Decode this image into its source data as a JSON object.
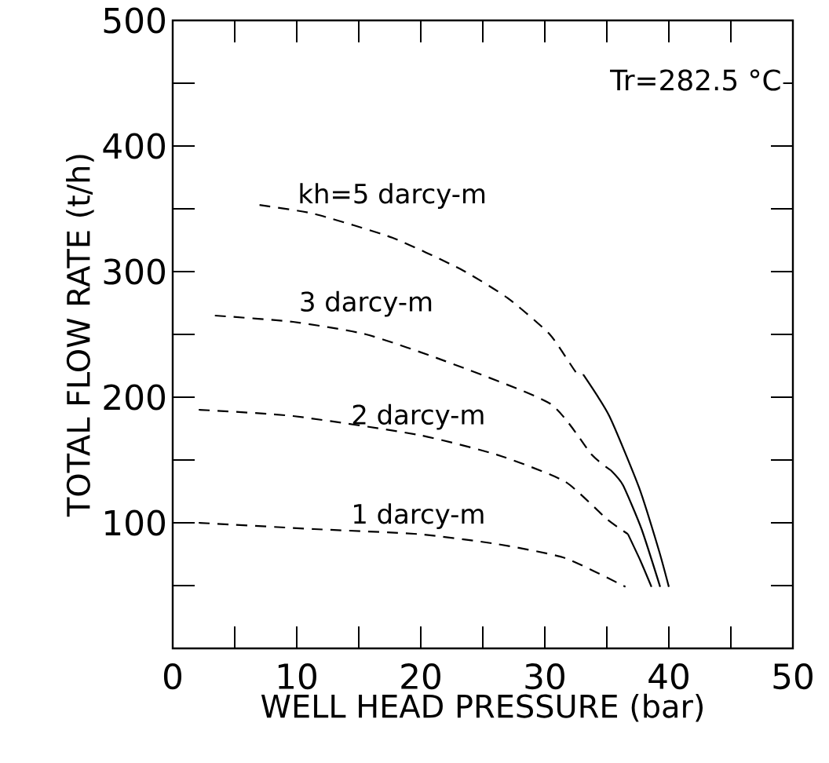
{
  "chart_data": {
    "type": "line",
    "xlabel": "WELL HEAD PRESSURE (bar)",
    "ylabel": "TOTAL FLOW RATE (t/h)",
    "annotations": [
      "Tr=282.5 °C"
    ],
    "xlim": [
      0,
      50
    ],
    "ylim": [
      0,
      500
    ],
    "xticks": [
      0,
      {
        "value": 5,
        "label": null
      },
      10,
      {
        "value": 15,
        "label": null
      },
      20,
      {
        "value": 25,
        "label": null
      },
      30,
      {
        "value": 35,
        "label": null
      },
      40,
      {
        "value": 45,
        "label": null
      },
      50
    ],
    "yticks": [
      {
        "value": 0,
        "label": null
      },
      {
        "value": 50,
        "label": null
      },
      100,
      {
        "value": 150,
        "label": null
      },
      200,
      {
        "value": 250,
        "label": null
      },
      300,
      {
        "value": 350,
        "label": null
      },
      400,
      {
        "value": 450,
        "label": null
      },
      500
    ],
    "grid": false,
    "legend": false,
    "marker": "none",
    "series": [
      {
        "name": "kh=5 darcy-m",
        "color": "#000000",
        "line_style": "dashed",
        "x": [
          7.0,
          11.4,
          17.7,
          23.2,
          27.0,
          30.4,
          32.5,
          33.1
        ],
        "values": [
          353,
          346,
          327,
          302,
          279,
          250,
          220,
          218
        ]
      },
      {
        "color": "#000000",
        "line_style": "solid",
        "x": [
          33.1,
          35.2,
          37.6,
          39.2,
          40.0
        ],
        "values": [
          218,
          185,
          128,
          78,
          49
        ]
      },
      {
        "name": "3 darcy-m",
        "color": "#000000",
        "line_style": "dashed",
        "x": [
          3.4,
          9.7,
          15.6,
          21.9,
          30.4,
          33.8,
          35.3
        ],
        "values": [
          265,
          260,
          250,
          229,
          195,
          154,
          142
        ]
      },
      {
        "color": "#000000",
        "line_style": "solid",
        "x": [
          35.3,
          36.3,
          37.8,
          39.3
        ],
        "values": [
          142,
          130,
          95,
          49
        ]
      },
      {
        "name": "2 darcy-m",
        "color": "#000000",
        "line_style": "dashed",
        "x": [
          2.1,
          9.7,
          19.8,
          26.2,
          31.6,
          35.0,
          36.7
        ],
        "values": [
          190,
          185,
          170,
          154,
          133,
          103,
          91
        ]
      },
      {
        "color": "#000000",
        "line_style": "solid",
        "x": [
          36.7,
          37.7,
          38.6
        ],
        "values": [
          91,
          70,
          49
        ]
      },
      {
        "name": "1 darcy-m",
        "color": "#000000",
        "line_style": "dashed",
        "x": [
          2.1,
          11.4,
          19.8,
          26.2,
          31.6,
          36.5
        ],
        "values": [
          100,
          95,
          91,
          83,
          72,
          49
        ]
      }
    ]
  }
}
